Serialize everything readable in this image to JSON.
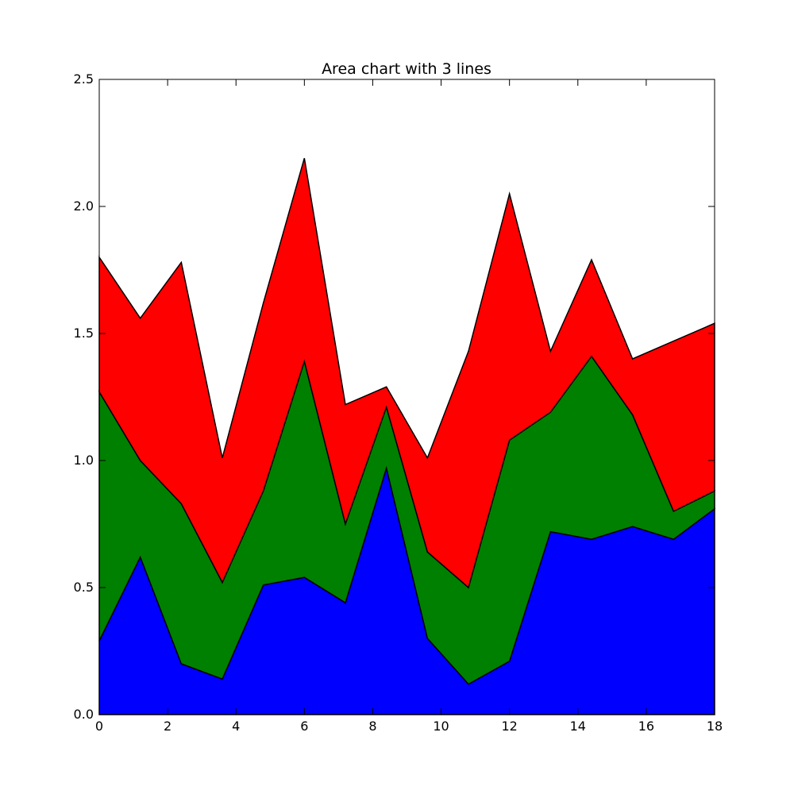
{
  "chart_data": {
    "type": "area",
    "stacked": true,
    "title": "Area chart with 3 lines",
    "xlabel": "",
    "ylabel": "",
    "xlim": [
      0,
      18
    ],
    "ylim": [
      0,
      2.5
    ],
    "x_ticks": [
      "0",
      "2",
      "4",
      "6",
      "8",
      "10",
      "12",
      "14",
      "16",
      "18"
    ],
    "y_ticks": [
      "0.0",
      "0.5",
      "1.0",
      "1.5",
      "2.0",
      "2.5"
    ],
    "grid": false,
    "x": [
      0,
      1.2,
      2.4,
      3.6,
      4.8,
      6.0,
      7.2,
      8.4,
      9.6,
      10.8,
      12.0,
      13.2,
      14.4,
      15.6,
      16.8,
      18.0
    ],
    "series": [
      {
        "color": "#0000ff",
        "values": [
          0.29,
          0.62,
          0.2,
          0.14,
          0.51,
          0.54,
          0.44,
          0.97,
          0.3,
          0.12,
          0.21,
          0.72,
          0.69,
          0.74,
          0.69,
          0.81
        ]
      },
      {
        "color": "#008000",
        "values": [
          0.98,
          0.38,
          0.63,
          0.38,
          0.37,
          0.85,
          0.31,
          0.24,
          0.34,
          0.38,
          0.87,
          0.47,
          0.72,
          0.44,
          0.11,
          0.07
        ]
      },
      {
        "color": "#ff0000",
        "values": [
          0.53,
          0.56,
          0.95,
          0.49,
          0.74,
          0.8,
          0.47,
          0.08,
          0.37,
          0.93,
          0.97,
          0.24,
          0.38,
          0.22,
          0.67,
          0.66
        ]
      }
    ]
  }
}
